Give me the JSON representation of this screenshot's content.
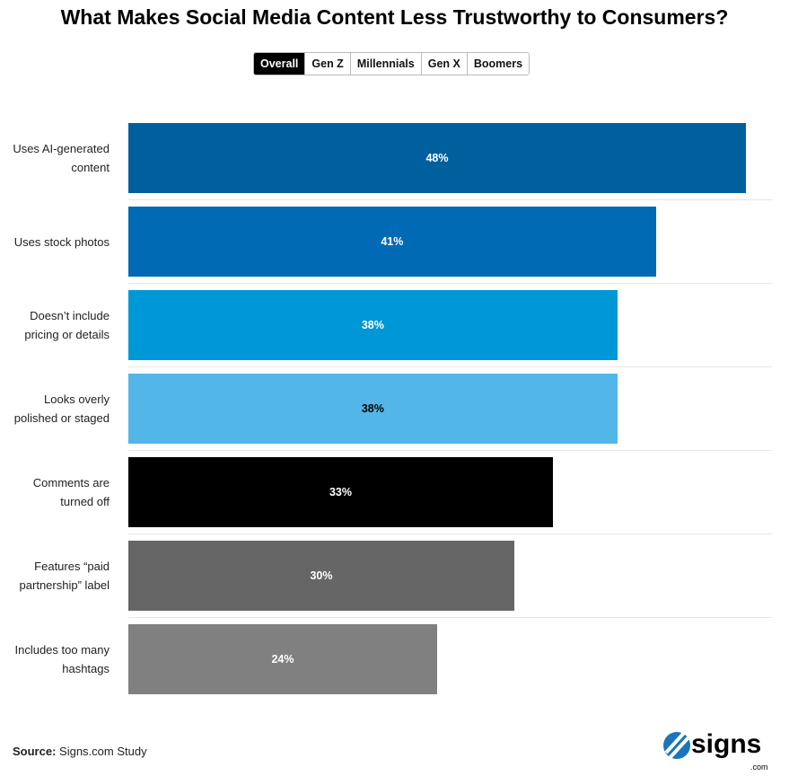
{
  "chart_data": {
    "type": "bar",
    "orientation": "horizontal",
    "title": "What Makes Social Media Content Less Trustworthy to Consumers?",
    "categories": [
      "Uses AI-generated content",
      "Uses stock photos",
      "Doesn’t include pricing or details",
      "Looks overly polished or staged",
      "Comments are turned off",
      "Features “paid partnership” label",
      "Includes too many hashtags"
    ],
    "values": [
      48,
      41,
      38,
      38,
      33,
      30,
      24
    ],
    "data_labels": [
      "48%",
      "41%",
      "38%",
      "38%",
      "33%",
      "30%",
      "24%"
    ],
    "colors": [
      "#00609e",
      "#006ab4",
      "#0097d6",
      "#52b6e8",
      "#000000",
      "#666666",
      "#808080"
    ],
    "label_colors": [
      "#ffffff",
      "#ffffff",
      "#ffffff",
      "#000000",
      "#ffffff",
      "#ffffff",
      "#ffffff"
    ],
    "grid": false
  },
  "tabs": [
    {
      "label": "Overall",
      "active": true
    },
    {
      "label": "Gen Z"
    },
    {
      "label": "Millennials"
    },
    {
      "label": "Gen X"
    },
    {
      "label": "Boomers"
    }
  ],
  "source": {
    "label": "Source:",
    "text": "Signs.com Study"
  },
  "logo": {
    "text": "signs",
    ".com": ".com"
  }
}
